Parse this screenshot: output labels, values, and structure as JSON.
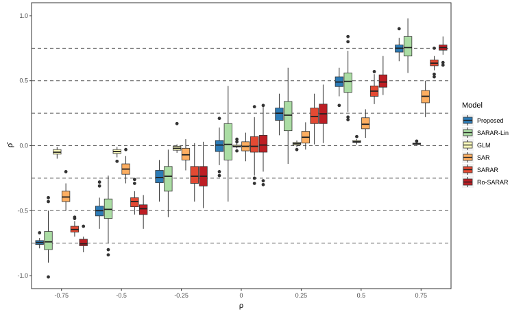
{
  "chart_data": {
    "type": "box",
    "xlabel": "ρ",
    "ylabel": "ρ̂",
    "ylim": [
      -1.1,
      1.1
    ],
    "y_ticks": [
      -1.0,
      -0.5,
      0.0,
      0.5,
      1.0
    ],
    "y_tick_labels": [
      "-1.0",
      "-0.5",
      "0.0",
      "0.5",
      "1.0"
    ],
    "categories": [
      "-0.75",
      "-0.5",
      "-0.25",
      "0",
      "0.25",
      "0.5",
      "0.75"
    ],
    "reference_lines": [
      -0.75,
      -0.5,
      -0.25,
      0,
      0.25,
      0.5,
      0.75
    ],
    "grid": false,
    "legend": {
      "title": "Model",
      "position": "right"
    },
    "series": [
      {
        "name": "Proposed",
        "color": "#2c7bb6",
        "boxes": [
          {
            "q1": -0.76,
            "median": -0.745,
            "q3": -0.73,
            "lo": -0.79,
            "hi": -0.71,
            "outliers": [
              -0.67
            ]
          },
          {
            "q1": -0.54,
            "median": -0.5,
            "q3": -0.465,
            "lo": -0.64,
            "hi": -0.4,
            "outliers": [
              -0.28,
              -0.31
            ]
          },
          {
            "q1": -0.285,
            "median": -0.245,
            "q3": -0.19,
            "lo": -0.43,
            "hi": -0.11,
            "outliers": []
          },
          {
            "q1": -0.045,
            "median": 0.005,
            "q3": 0.04,
            "lo": -0.15,
            "hi": 0.14,
            "outliers": [
              -0.2,
              -0.23,
              0.21
            ]
          },
          {
            "q1": 0.195,
            "median": 0.25,
            "q3": 0.29,
            "lo": 0.08,
            "hi": 0.4,
            "outliers": []
          },
          {
            "q1": 0.455,
            "median": 0.49,
            "q3": 0.53,
            "lo": 0.38,
            "hi": 0.6,
            "outliers": [
              0.31
            ]
          },
          {
            "q1": 0.72,
            "median": 0.75,
            "q3": 0.775,
            "lo": 0.65,
            "hi": 0.83,
            "outliers": [
              0.9
            ]
          }
        ]
      },
      {
        "name": "SARAR-Lin",
        "color": "#abdda4",
        "boxes": [
          {
            "q1": -0.8,
            "median": -0.74,
            "q3": -0.66,
            "lo": -0.9,
            "hi": -0.5,
            "outliers": [
              -0.4,
              -0.43,
              -1.01
            ]
          },
          {
            "q1": -0.56,
            "median": -0.49,
            "q3": -0.41,
            "lo": -0.75,
            "hi": -0.23,
            "outliers": [
              -0.8,
              -0.84
            ]
          },
          {
            "q1": -0.35,
            "median": -0.235,
            "q3": -0.16,
            "lo": -0.55,
            "hi": -0.03,
            "outliers": []
          },
          {
            "q1": -0.11,
            "median": 0.01,
            "q3": 0.17,
            "lo": -0.43,
            "hi": 0.46,
            "outliers": []
          },
          {
            "q1": 0.115,
            "median": 0.235,
            "q3": 0.34,
            "lo": -0.14,
            "hi": 0.6,
            "outliers": []
          },
          {
            "q1": 0.41,
            "median": 0.495,
            "q3": 0.56,
            "lo": 0.26,
            "hi": 0.73,
            "outliers": [
              0.8,
              0.84,
              0.2,
              0.22
            ]
          },
          {
            "q1": 0.69,
            "median": 0.755,
            "q3": 0.84,
            "lo": 0.56,
            "hi": 0.98,
            "outliers": []
          }
        ]
      },
      {
        "name": "GLM",
        "color": "#ffffbf",
        "boxes": [
          {
            "q1": -0.065,
            "median": -0.05,
            "q3": -0.03,
            "lo": -0.1,
            "hi": -0.01,
            "outliers": []
          },
          {
            "q1": -0.06,
            "median": -0.045,
            "q3": -0.03,
            "lo": -0.09,
            "hi": -0.01,
            "outliers": [
              -0.12
            ]
          },
          {
            "q1": -0.035,
            "median": -0.02,
            "q3": -0.005,
            "lo": -0.055,
            "hi": 0.01,
            "outliers": [
              0.17
            ]
          },
          {
            "q1": -0.01,
            "median": -0.005,
            "q3": 0.005,
            "lo": -0.02,
            "hi": 0.02,
            "outliers": [
              -0.04,
              0.03,
              0.05
            ]
          },
          {
            "q1": 0.005,
            "median": 0.015,
            "q3": 0.025,
            "lo": -0.01,
            "hi": 0.04,
            "outliers": [
              -0.03
            ]
          },
          {
            "q1": 0.025,
            "median": 0.03,
            "q3": 0.04,
            "lo": 0.01,
            "hi": 0.05,
            "outliers": [
              0.07
            ]
          },
          {
            "q1": 0.01,
            "median": 0.015,
            "q3": 0.02,
            "lo": 0.005,
            "hi": 0.025,
            "outliers": [
              0.035
            ]
          }
        ]
      },
      {
        "name": "SAR",
        "color": "#fdae61",
        "boxes": [
          {
            "q1": -0.43,
            "median": -0.395,
            "q3": -0.35,
            "lo": -0.5,
            "hi": -0.29,
            "outliers": [
              -0.2
            ]
          },
          {
            "q1": -0.22,
            "median": -0.18,
            "q3": -0.14,
            "lo": -0.29,
            "hi": -0.08,
            "outliers": [
              -0.03
            ]
          },
          {
            "q1": -0.11,
            "median": -0.07,
            "q3": -0.02,
            "lo": -0.19,
            "hi": 0.05,
            "outliers": []
          },
          {
            "q1": -0.04,
            "median": -0.005,
            "q3": 0.03,
            "lo": -0.12,
            "hi": 0.1,
            "outliers": []
          },
          {
            "q1": 0.02,
            "median": 0.065,
            "q3": 0.11,
            "lo": -0.03,
            "hi": 0.18,
            "outliers": []
          },
          {
            "q1": 0.13,
            "median": 0.165,
            "q3": 0.215,
            "lo": 0.06,
            "hi": 0.28,
            "outliers": []
          },
          {
            "q1": 0.33,
            "median": 0.38,
            "q3": 0.425,
            "lo": 0.22,
            "hi": 0.5,
            "outliers": []
          }
        ]
      },
      {
        "name": "SARAR",
        "color": "#e34a33",
        "boxes": [
          {
            "q1": -0.665,
            "median": -0.645,
            "q3": -0.62,
            "lo": -0.7,
            "hi": -0.58,
            "outliers": [
              -0.55,
              -0.56
            ]
          },
          {
            "q1": -0.47,
            "median": -0.43,
            "q3": -0.4,
            "lo": -0.53,
            "hi": -0.35,
            "outliers": [
              -0.26,
              -0.29
            ]
          },
          {
            "q1": -0.29,
            "median": -0.235,
            "q3": -0.16,
            "lo": -0.43,
            "hi": 0.02,
            "outliers": []
          },
          {
            "q1": -0.05,
            "median": -0.005,
            "q3": 0.07,
            "lo": -0.23,
            "hi": 0.22,
            "outliers": [
              -0.25,
              -0.29,
              0.3
            ]
          },
          {
            "q1": 0.17,
            "median": 0.225,
            "q3": 0.29,
            "lo": 0.01,
            "hi": 0.4,
            "outliers": []
          },
          {
            "q1": 0.38,
            "median": 0.42,
            "q3": 0.46,
            "lo": 0.32,
            "hi": 0.55,
            "outliers": [
              0.57
            ]
          },
          {
            "q1": 0.615,
            "median": 0.635,
            "q3": 0.66,
            "lo": 0.58,
            "hi": 0.69,
            "outliers": [
              0.75,
              0.53,
              0.55
            ]
          }
        ]
      },
      {
        "name": "Ro-SARAR",
        "color": "#bd1e24",
        "boxes": [
          {
            "q1": -0.77,
            "median": -0.755,
            "q3": -0.72,
            "lo": -0.82,
            "hi": -0.7,
            "outliers": [
              -0.62
            ]
          },
          {
            "q1": -0.53,
            "median": -0.485,
            "q3": -0.455,
            "lo": -0.64,
            "hi": -0.38,
            "outliers": []
          },
          {
            "q1": -0.31,
            "median": -0.235,
            "q3": -0.16,
            "lo": -0.48,
            "hi": 0.03,
            "outliers": []
          },
          {
            "q1": -0.05,
            "median": 0.005,
            "q3": 0.08,
            "lo": -0.2,
            "hi": 0.3,
            "outliers": [
              -0.27,
              -0.3,
              0.31
            ]
          },
          {
            "q1": 0.17,
            "median": 0.245,
            "q3": 0.32,
            "lo": 0.02,
            "hi": 0.47,
            "outliers": []
          },
          {
            "q1": 0.45,
            "median": 0.49,
            "q3": 0.545,
            "lo": 0.39,
            "hi": 0.69,
            "outliers": []
          },
          {
            "q1": 0.735,
            "median": 0.755,
            "q3": 0.775,
            "lo": 0.7,
            "hi": 0.84,
            "outliers": [
              0.62,
              0.64
            ]
          }
        ]
      }
    ]
  }
}
